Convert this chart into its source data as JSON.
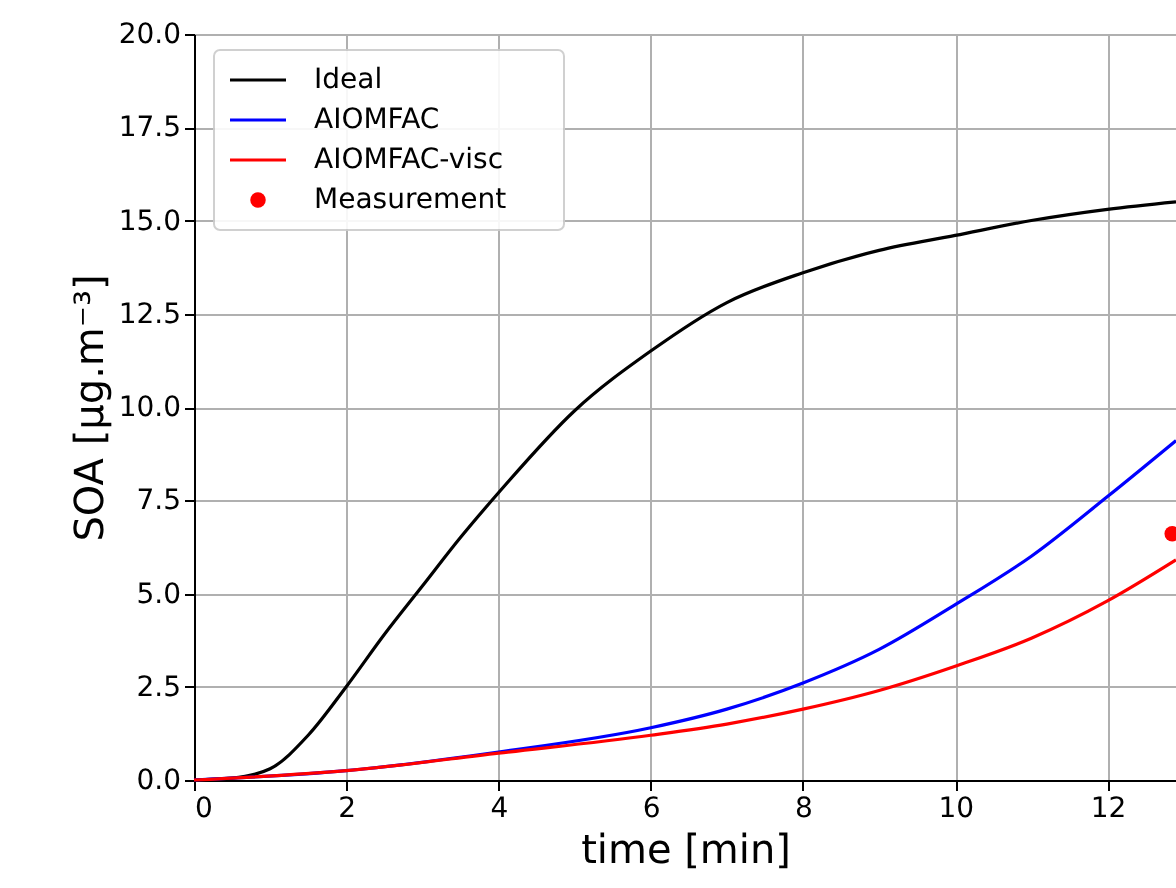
{
  "chart_data": {
    "type": "line",
    "xlabel": "time [min]",
    "ylabel": "SOA [μg.m⁻³]",
    "xlim": [
      0,
      12.9
    ],
    "ylim": [
      0,
      20
    ],
    "xticks": [
      0,
      2,
      4,
      6,
      8,
      10,
      12
    ],
    "yticks": [
      {
        "value": 0,
        "label": "0.0"
      },
      2.5,
      {
        "value": 5,
        "label": "5.0"
      },
      7.5,
      {
        "value": 10,
        "label": "10.0"
      },
      12.5,
      {
        "value": 15,
        "label": "15.0"
      },
      17.5,
      {
        "value": 20,
        "label": "20.0"
      }
    ],
    "grid": true,
    "legend": "top left",
    "series": [
      {
        "name": "Ideal",
        "color": "#000000",
        "x": [
          0,
          0.5,
          1,
          1.5,
          2,
          2.5,
          3,
          3.5,
          4,
          5,
          6,
          7,
          8,
          9,
          10,
          11,
          12,
          12.9
        ],
        "values": [
          0,
          0.05,
          0.3,
          1.2,
          2.5,
          3.9,
          5.2,
          6.5,
          7.7,
          9.9,
          11.5,
          12.8,
          13.6,
          14.2,
          14.6,
          15.0,
          15.3,
          15.5
        ]
      },
      {
        "name": "AIOMFAC",
        "color": "#0000ff",
        "x": [
          0,
          2,
          4,
          6,
          7,
          8,
          9,
          10,
          11,
          12,
          12.9
        ],
        "values": [
          0,
          0.25,
          0.75,
          1.4,
          1.9,
          2.6,
          3.5,
          4.7,
          6.0,
          7.6,
          9.1
        ]
      },
      {
        "name": "AIOMFAC-visc",
        "color": "#ff0000",
        "x": [
          0,
          2,
          4,
          6,
          7,
          8,
          9,
          10,
          11,
          12,
          12.9
        ],
        "values": [
          0,
          0.25,
          0.72,
          1.2,
          1.5,
          1.9,
          2.4,
          3.05,
          3.8,
          4.8,
          5.9
        ]
      },
      {
        "name": "Measurement",
        "type": "scatter",
        "marker": "circle",
        "color": "#ff0000",
        "x": [
          12.85
        ],
        "values": [
          6.6
        ]
      }
    ]
  }
}
